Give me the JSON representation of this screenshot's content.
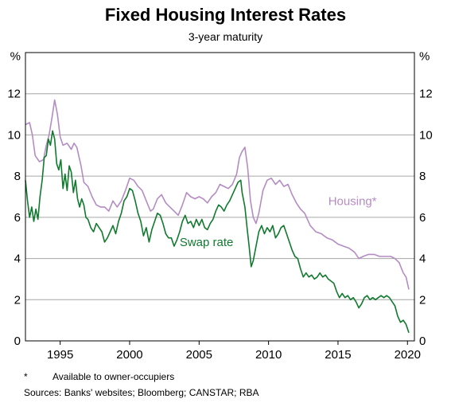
{
  "chart_data": {
    "type": "line",
    "title": "Fixed Housing Interest Rates",
    "subtitle": "3-year maturity",
    "ylabel_left": "%",
    "ylabel_right": "%",
    "xlim": [
      1992.5,
      2020.5
    ],
    "ylim": [
      0,
      14
    ],
    "x_ticks": [
      1995,
      2000,
      2005,
      2010,
      2015,
      2020
    ],
    "y_ticks": [
      0,
      2,
      4,
      6,
      8,
      10,
      12
    ],
    "grid": true,
    "series": [
      {
        "name": "Housing*",
        "color": "#b48cc4",
        "points": [
          [
            1992.5,
            10.5
          ],
          [
            1992.8,
            10.6
          ],
          [
            1993.0,
            10.0
          ],
          [
            1993.2,
            9.0
          ],
          [
            1993.5,
            8.7
          ],
          [
            1993.8,
            8.8
          ],
          [
            1994.0,
            9.5
          ],
          [
            1994.2,
            10.0
          ],
          [
            1994.4,
            10.8
          ],
          [
            1994.6,
            11.7
          ],
          [
            1994.8,
            11.0
          ],
          [
            1995.0,
            9.9
          ],
          [
            1995.2,
            9.5
          ],
          [
            1995.5,
            9.6
          ],
          [
            1995.8,
            9.3
          ],
          [
            1996.0,
            9.6
          ],
          [
            1996.2,
            9.4
          ],
          [
            1996.5,
            8.5
          ],
          [
            1996.7,
            7.7
          ],
          [
            1997.0,
            7.5
          ],
          [
            1997.3,
            7.0
          ],
          [
            1997.6,
            6.6
          ],
          [
            1997.9,
            6.5
          ],
          [
            1998.2,
            6.5
          ],
          [
            1998.5,
            6.3
          ],
          [
            1998.8,
            6.8
          ],
          [
            1999.1,
            6.5
          ],
          [
            1999.4,
            6.8
          ],
          [
            1999.7,
            7.3
          ],
          [
            2000.0,
            7.9
          ],
          [
            2000.3,
            7.8
          ],
          [
            2000.6,
            7.5
          ],
          [
            2000.9,
            7.3
          ],
          [
            2001.2,
            6.8
          ],
          [
            2001.5,
            6.3
          ],
          [
            2001.7,
            6.4
          ],
          [
            2002.0,
            6.9
          ],
          [
            2002.3,
            7.1
          ],
          [
            2002.6,
            6.7
          ],
          [
            2002.9,
            6.5
          ],
          [
            2003.2,
            6.3
          ],
          [
            2003.5,
            6.1
          ],
          [
            2003.8,
            6.6
          ],
          [
            2004.1,
            7.2
          ],
          [
            2004.4,
            7.0
          ],
          [
            2004.7,
            6.9
          ],
          [
            2005.0,
            7.0
          ],
          [
            2005.3,
            6.9
          ],
          [
            2005.6,
            6.7
          ],
          [
            2005.9,
            7.0
          ],
          [
            2006.2,
            7.2
          ],
          [
            2006.5,
            7.6
          ],
          [
            2006.8,
            7.5
          ],
          [
            2007.1,
            7.4
          ],
          [
            2007.4,
            7.6
          ],
          [
            2007.7,
            8.1
          ],
          [
            2007.9,
            8.9
          ],
          [
            2008.1,
            9.2
          ],
          [
            2008.3,
            9.4
          ],
          [
            2008.5,
            8.4
          ],
          [
            2008.7,
            6.8
          ],
          [
            2008.9,
            6.0
          ],
          [
            2009.1,
            5.7
          ],
          [
            2009.3,
            6.2
          ],
          [
            2009.6,
            7.3
          ],
          [
            2009.9,
            7.8
          ],
          [
            2010.2,
            7.9
          ],
          [
            2010.5,
            7.6
          ],
          [
            2010.8,
            7.8
          ],
          [
            2011.1,
            7.5
          ],
          [
            2011.4,
            7.6
          ],
          [
            2011.7,
            7.1
          ],
          [
            2012.0,
            6.7
          ],
          [
            2012.3,
            6.4
          ],
          [
            2012.6,
            6.2
          ],
          [
            2013.0,
            5.6
          ],
          [
            2013.4,
            5.3
          ],
          [
            2013.8,
            5.2
          ],
          [
            2014.2,
            5.0
          ],
          [
            2014.6,
            4.9
          ],
          [
            2015.0,
            4.7
          ],
          [
            2015.4,
            4.6
          ],
          [
            2015.8,
            4.5
          ],
          [
            2016.2,
            4.3
          ],
          [
            2016.5,
            4.0
          ],
          [
            2016.8,
            4.1
          ],
          [
            2017.2,
            4.2
          ],
          [
            2017.6,
            4.2
          ],
          [
            2018.0,
            4.1
          ],
          [
            2018.4,
            4.1
          ],
          [
            2018.8,
            4.1
          ],
          [
            2019.1,
            4.0
          ],
          [
            2019.4,
            3.8
          ],
          [
            2019.7,
            3.3
          ],
          [
            2019.9,
            3.1
          ],
          [
            2020.1,
            2.5
          ]
        ]
      },
      {
        "name": "Swap rate",
        "color": "#117a2e",
        "points": [
          [
            1992.5,
            7.8
          ],
          [
            1992.65,
            6.8
          ],
          [
            1992.8,
            6.0
          ],
          [
            1992.95,
            6.5
          ],
          [
            1993.1,
            5.8
          ],
          [
            1993.25,
            6.4
          ],
          [
            1993.4,
            5.9
          ],
          [
            1993.55,
            7.0
          ],
          [
            1993.7,
            7.8
          ],
          [
            1993.85,
            8.9
          ],
          [
            1994.0,
            9.0
          ],
          [
            1994.15,
            9.8
          ],
          [
            1994.3,
            9.5
          ],
          [
            1994.45,
            10.2
          ],
          [
            1994.6,
            9.8
          ],
          [
            1994.75,
            8.6
          ],
          [
            1994.9,
            8.3
          ],
          [
            1995.05,
            8.8
          ],
          [
            1995.2,
            7.4
          ],
          [
            1995.35,
            8.1
          ],
          [
            1995.5,
            7.3
          ],
          [
            1995.65,
            8.5
          ],
          [
            1995.8,
            8.2
          ],
          [
            1995.95,
            7.2
          ],
          [
            1996.1,
            7.8
          ],
          [
            1996.25,
            6.9
          ],
          [
            1996.4,
            6.5
          ],
          [
            1996.55,
            6.9
          ],
          [
            1996.7,
            6.6
          ],
          [
            1996.85,
            6.0
          ],
          [
            1997.0,
            5.9
          ],
          [
            1997.2,
            5.5
          ],
          [
            1997.4,
            5.3
          ],
          [
            1997.6,
            5.7
          ],
          [
            1997.8,
            5.5
          ],
          [
            1998.0,
            5.3
          ],
          [
            1998.2,
            4.8
          ],
          [
            1998.4,
            5.0
          ],
          [
            1998.6,
            5.3
          ],
          [
            1998.8,
            5.6
          ],
          [
            1999.0,
            5.2
          ],
          [
            1999.2,
            5.8
          ],
          [
            1999.4,
            6.2
          ],
          [
            1999.6,
            6.8
          ],
          [
            1999.8,
            7.0
          ],
          [
            2000.0,
            7.4
          ],
          [
            2000.2,
            7.3
          ],
          [
            2000.4,
            6.8
          ],
          [
            2000.6,
            6.2
          ],
          [
            2000.8,
            5.8
          ],
          [
            2001.0,
            5.1
          ],
          [
            2001.2,
            5.5
          ],
          [
            2001.4,
            4.8
          ],
          [
            2001.6,
            5.4
          ],
          [
            2001.8,
            5.8
          ],
          [
            2002.0,
            6.2
          ],
          [
            2002.2,
            6.1
          ],
          [
            2002.4,
            5.7
          ],
          [
            2002.6,
            5.2
          ],
          [
            2002.8,
            5.0
          ],
          [
            2003.0,
            5.0
          ],
          [
            2003.2,
            4.6
          ],
          [
            2003.4,
            4.9
          ],
          [
            2003.6,
            5.3
          ],
          [
            2003.8,
            5.8
          ],
          [
            2004.0,
            6.1
          ],
          [
            2004.2,
            5.7
          ],
          [
            2004.4,
            5.8
          ],
          [
            2004.6,
            5.5
          ],
          [
            2004.8,
            5.9
          ],
          [
            2005.0,
            5.6
          ],
          [
            2005.2,
            5.9
          ],
          [
            2005.4,
            5.5
          ],
          [
            2005.6,
            5.4
          ],
          [
            2005.8,
            5.7
          ],
          [
            2006.0,
            5.9
          ],
          [
            2006.2,
            6.3
          ],
          [
            2006.4,
            6.6
          ],
          [
            2006.6,
            6.5
          ],
          [
            2006.8,
            6.3
          ],
          [
            2007.0,
            6.6
          ],
          [
            2007.2,
            6.8
          ],
          [
            2007.4,
            7.1
          ],
          [
            2007.6,
            7.4
          ],
          [
            2007.8,
            7.7
          ],
          [
            2008.0,
            7.8
          ],
          [
            2008.1,
            7.2
          ],
          [
            2008.3,
            6.5
          ],
          [
            2008.45,
            5.5
          ],
          [
            2008.6,
            4.6
          ],
          [
            2008.75,
            3.6
          ],
          [
            2008.9,
            3.9
          ],
          [
            2009.1,
            4.6
          ],
          [
            2009.3,
            5.3
          ],
          [
            2009.5,
            5.6
          ],
          [
            2009.7,
            5.2
          ],
          [
            2009.9,
            5.5
          ],
          [
            2010.1,
            5.3
          ],
          [
            2010.3,
            5.6
          ],
          [
            2010.5,
            5.0
          ],
          [
            2010.7,
            5.2
          ],
          [
            2010.9,
            5.5
          ],
          [
            2011.1,
            5.6
          ],
          [
            2011.3,
            5.2
          ],
          [
            2011.5,
            4.8
          ],
          [
            2011.7,
            4.4
          ],
          [
            2011.9,
            4.1
          ],
          [
            2012.1,
            4.0
          ],
          [
            2012.3,
            3.5
          ],
          [
            2012.5,
            3.1
          ],
          [
            2012.7,
            3.3
          ],
          [
            2012.9,
            3.1
          ],
          [
            2013.1,
            3.2
          ],
          [
            2013.3,
            3.0
          ],
          [
            2013.5,
            3.1
          ],
          [
            2013.7,
            3.3
          ],
          [
            2013.9,
            3.1
          ],
          [
            2014.1,
            3.2
          ],
          [
            2014.3,
            3.0
          ],
          [
            2014.5,
            2.9
          ],
          [
            2014.7,
            2.8
          ],
          [
            2014.9,
            2.4
          ],
          [
            2015.1,
            2.1
          ],
          [
            2015.3,
            2.3
          ],
          [
            2015.5,
            2.1
          ],
          [
            2015.7,
            2.2
          ],
          [
            2015.9,
            2.0
          ],
          [
            2016.1,
            2.1
          ],
          [
            2016.3,
            1.9
          ],
          [
            2016.5,
            1.6
          ],
          [
            2016.7,
            1.8
          ],
          [
            2016.9,
            2.1
          ],
          [
            2017.1,
            2.2
          ],
          [
            2017.3,
            2.0
          ],
          [
            2017.5,
            2.1
          ],
          [
            2017.7,
            2.0
          ],
          [
            2017.9,
            2.1
          ],
          [
            2018.1,
            2.2
          ],
          [
            2018.3,
            2.1
          ],
          [
            2018.5,
            2.2
          ],
          [
            2018.7,
            2.1
          ],
          [
            2018.9,
            1.9
          ],
          [
            2019.1,
            1.7
          ],
          [
            2019.3,
            1.2
          ],
          [
            2019.5,
            0.9
          ],
          [
            2019.7,
            1.0
          ],
          [
            2019.9,
            0.8
          ],
          [
            2020.1,
            0.4
          ]
        ]
      }
    ]
  },
  "labels": {
    "housing": "Housing*",
    "swap": "Swap rate"
  },
  "notes": {
    "asterisk": "*",
    "asterisk_text": "Available to owner-occupiers",
    "sources": "Sources: Banks' websites; Bloomberg; CANSTAR; RBA"
  }
}
